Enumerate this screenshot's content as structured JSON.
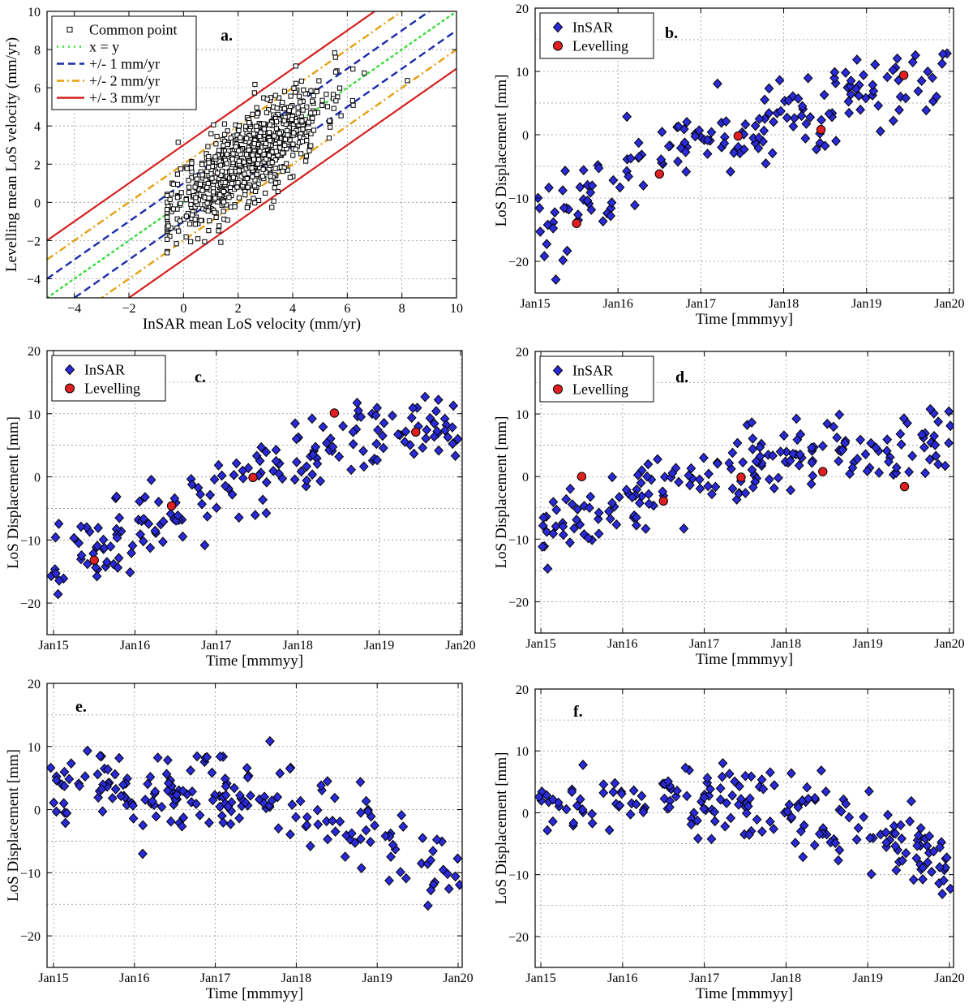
{
  "colors": {
    "insar_fill": "#2a2ad8",
    "levelling_fill": "#e02020",
    "common_point_fill": "#ffffff",
    "xy_line": "#33dd33",
    "line_1mm": "#1a2ba8",
    "line_2mm": "#e6a010",
    "line_3mm": "#d42020",
    "grid": "#999999"
  },
  "chart_data": [
    {
      "id": "a",
      "type": "scatter",
      "panel_label": "a.",
      "xlabel": "InSAR mean LoS velocity (mm/yr)",
      "ylabel": "Levelling mean LoS velocity (mm/yr)",
      "xlim": [
        -5,
        10
      ],
      "ylim": [
        -5,
        10
      ],
      "xticks": [
        -4,
        -2,
        0,
        2,
        4,
        6,
        8,
        10
      ],
      "yticks": [
        -4,
        -2,
        0,
        2,
        4,
        6,
        8,
        10
      ],
      "grid": true,
      "legend": [
        "Common point",
        "x = y",
        "+/- 1 mm/yr",
        "+/- 2 mm/yr",
        "+/- 3 mm/yr"
      ],
      "legend_position": "top-left",
      "ref_lines": [
        {
          "offsets": [
            0
          ],
          "style": "dotted",
          "color_key": "xy_line"
        },
        {
          "offsets": [
            1,
            -1
          ],
          "style": "dashed",
          "color_key": "line_1mm"
        },
        {
          "offsets": [
            2,
            -2
          ],
          "style": "dashdot",
          "color_key": "line_2mm"
        },
        {
          "offsets": [
            3,
            -3
          ],
          "style": "solid",
          "color_key": "line_3mm"
        }
      ],
      "series": [
        {
          "name": "Common point",
          "x": [],
          "y": [],
          "cloud": {
            "n": 780,
            "seed": 11,
            "x_mean": 2.3,
            "x_sd": 1.4,
            "x_min": -0.6,
            "x_max": 8.2,
            "resid_sd": 1.15
          }
        }
      ]
    },
    {
      "id": "b",
      "type": "scatter",
      "panel_label": "b.",
      "xlabel": "Time [mmmyy]",
      "ylabel": "LoS Displacement [mm]",
      "xlim": [
        2015.0,
        2020.05
      ],
      "ylim": [
        -25,
        20
      ],
      "xticks": [
        2015,
        2016,
        2017,
        2018,
        2019,
        2020
      ],
      "xticklabels": [
        "Jan15",
        "Jan16",
        "Jan17",
        "Jan18",
        "Jan19",
        "Jan20"
      ],
      "yticks": [
        -20,
        -10,
        0,
        10,
        20
      ],
      "grid": true,
      "legend": [
        "InSAR",
        "Levelling"
      ],
      "legend_position": "top-left",
      "series": [
        {
          "name": "InSAR",
          "x": [],
          "y": [],
          "sample": {
            "n": 175,
            "seed": 21,
            "trend": [
              [
                2015.0,
                -15
              ],
              [
                2016.0,
                -7
              ],
              [
                2017.0,
                -1
              ],
              [
                2018.0,
                3
              ],
              [
                2019.0,
                6
              ],
              [
                2020.0,
                9
              ]
            ],
            "noise": 3.2
          }
        },
        {
          "name": "Levelling",
          "x": [
            2015.5,
            2016.5,
            2017.45,
            2018.45,
            2019.45
          ],
          "y": [
            -14,
            -6.2,
            -0.2,
            0.8,
            9.4
          ]
        }
      ]
    },
    {
      "id": "c",
      "type": "scatter",
      "panel_label": "c.",
      "xlabel": "Time [mmmyy]",
      "ylabel": "LoS Displacement [mm]",
      "xlim": [
        2014.92,
        2020.02
      ],
      "ylim": [
        -25,
        20
      ],
      "xticks": [
        2015,
        2016,
        2017,
        2018,
        2019,
        2020
      ],
      "xticklabels": [
        "Jan15",
        "Jan16",
        "Jan17",
        "Jan18",
        "Jan19",
        "Jan20"
      ],
      "yticks": [
        -20,
        -10,
        0,
        10,
        20
      ],
      "grid": true,
      "legend": [
        "InSAR",
        "Levelling"
      ],
      "legend_position": "top-left",
      "series": [
        {
          "name": "InSAR",
          "x": [],
          "y": [],
          "sample": {
            "n": 185,
            "seed": 31,
            "trend": [
              [
                2015.0,
                -15
              ],
              [
                2016.0,
                -8
              ],
              [
                2017.0,
                -2
              ],
              [
                2018.0,
                3
              ],
              [
                2019.0,
                6
              ],
              [
                2020.0,
                9
              ]
            ],
            "noise": 3.0
          }
        },
        {
          "name": "Levelling",
          "x": [
            2015.5,
            2016.45,
            2017.45,
            2018.45,
            2019.45
          ],
          "y": [
            -13.2,
            -4.6,
            -0.1,
            10.1,
            7.1
          ]
        }
      ]
    },
    {
      "id": "d",
      "type": "scatter",
      "panel_label": "d.",
      "xlabel": "Time [mmmyy]",
      "ylabel": "LoS Displacement [mm]",
      "xlim": [
        2014.93,
        2020.05
      ],
      "ylim": [
        -25,
        20
      ],
      "xticks": [
        2015,
        2016,
        2017,
        2018,
        2019,
        2020
      ],
      "xticklabels": [
        "Jan15",
        "Jan16",
        "Jan17",
        "Jan18",
        "Jan19",
        "Jan20"
      ],
      "yticks": [
        -20,
        -10,
        0,
        10,
        20
      ],
      "grid": true,
      "legend": [
        "InSAR",
        "Levelling"
      ],
      "legend_position": "top-left",
      "series": [
        {
          "name": "InSAR",
          "x": [],
          "y": [],
          "sample": {
            "n": 190,
            "seed": 41,
            "trend": [
              [
                2015.0,
                -8
              ],
              [
                2016.0,
                -4
              ],
              [
                2017.0,
                -1
              ],
              [
                2018.0,
                3
              ],
              [
                2019.0,
                4
              ],
              [
                2020.0,
                6
              ]
            ],
            "noise": 2.8
          }
        },
        {
          "name": "Levelling",
          "x": [
            2015.5,
            2016.5,
            2017.45,
            2018.45,
            2019.45
          ],
          "y": [
            0,
            -3.9,
            -0.1,
            0.8,
            -1.6
          ]
        }
      ]
    },
    {
      "id": "e",
      "type": "scatter",
      "panel_label": "e.",
      "xlabel": "Time [mmmyy]",
      "ylabel": "LoS Displacement [mm]",
      "xlim": [
        2014.92,
        2020.05
      ],
      "ylim": [
        -25,
        20
      ],
      "xticks": [
        2015,
        2016,
        2017,
        2018,
        2019,
        2020
      ],
      "xticklabels": [
        "Jan15",
        "Jan16",
        "Jan17",
        "Jan18",
        "Jan19",
        "Jan20"
      ],
      "yticks": [
        -20,
        -10,
        0,
        10,
        20
      ],
      "grid": true,
      "legend": [],
      "series": [
        {
          "name": "InSAR",
          "x": [],
          "y": [],
          "sample": {
            "n": 195,
            "seed": 51,
            "trend": [
              [
                2015.0,
                2.5
              ],
              [
                2016.0,
                2.5
              ],
              [
                2017.0,
                3
              ],
              [
                2018.0,
                1.5
              ],
              [
                2018.8,
                -4
              ],
              [
                2019.5,
                -7
              ],
              [
                2020.0,
                -10
              ]
            ],
            "noise": 3.0
          }
        }
      ]
    },
    {
      "id": "f",
      "type": "scatter",
      "panel_label": "f.",
      "xlabel": "Time [mmmyy]",
      "ylabel": "LoS Displacement [mm]",
      "xlim": [
        2014.93,
        2020.05
      ],
      "ylim": [
        -25,
        20
      ],
      "xticks": [
        2015,
        2016,
        2017,
        2018,
        2019,
        2020
      ],
      "xticklabels": [
        "Jan15",
        "Jan16",
        "Jan17",
        "Jan18",
        "Jan19",
        "Jan20"
      ],
      "yticks": [
        -20,
        -10,
        0,
        10,
        20
      ],
      "grid": true,
      "legend": [],
      "series": [
        {
          "name": "InSAR",
          "x": [],
          "y": [],
          "sample": {
            "n": 195,
            "seed": 61,
            "trend": [
              [
                2015.0,
                1
              ],
              [
                2016.0,
                2.5
              ],
              [
                2017.0,
                2.5
              ],
              [
                2018.0,
                1
              ],
              [
                2018.8,
                -2
              ],
              [
                2019.5,
                -5
              ],
              [
                2020.0,
                -9
              ]
            ],
            "noise": 3.0
          }
        }
      ]
    }
  ]
}
